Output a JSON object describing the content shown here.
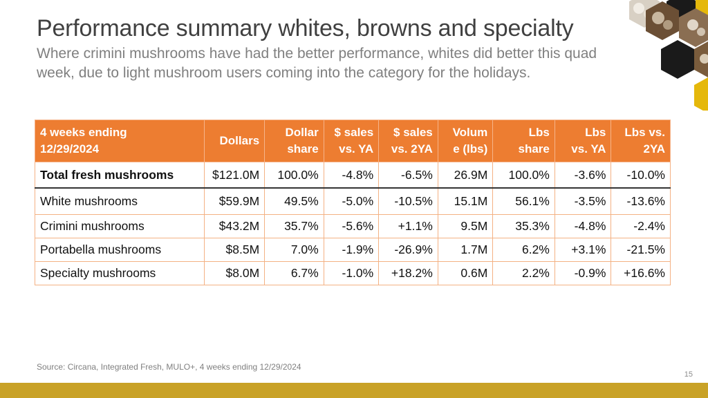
{
  "slide": {
    "title": "Performance summary whites, browns and specialty",
    "subtitle": "Where crimini mushrooms have had the better performance, whites did better this quad week, due to light mushroom users coming into the category for the holidays.",
    "source": "Source: Circana, Integrated Fresh, MULO+, 4 weeks ending 12/29/2024",
    "page_number": "15",
    "accent_color": "#ed7d31",
    "bar_color": "#c9a227"
  },
  "table": {
    "headers": [
      [
        "4 weeks ending",
        "12/29/2024"
      ],
      [
        "Dollars"
      ],
      [
        "Dollar",
        "share"
      ],
      [
        "$ sales",
        "vs. YA"
      ],
      [
        "$ sales",
        "vs. 2YA"
      ],
      [
        "Volum",
        "e (lbs)"
      ],
      [
        "Lbs",
        "share"
      ],
      [
        "Lbs",
        "vs. YA"
      ],
      [
        "Lbs vs.",
        "2YA"
      ]
    ],
    "rows": [
      [
        "Total fresh mushrooms",
        "$121.0M",
        "100.0%",
        "-4.8%",
        "-6.5%",
        "26.9M",
        "100.0%",
        "-3.6%",
        "-10.0%"
      ],
      [
        "White mushrooms",
        "$59.9M",
        "49.5%",
        "-5.0%",
        "-10.5%",
        "15.1M",
        "56.1%",
        "-3.5%",
        "-13.6%"
      ],
      [
        "Crimini mushrooms",
        "$43.2M",
        "35.7%",
        "-5.6%",
        "+1.1%",
        "9.5M",
        "35.3%",
        "-4.8%",
        "-2.4%"
      ],
      [
        "Portabella mushrooms",
        "$8.5M",
        "7.0%",
        "-1.9%",
        "-26.9%",
        "1.7M",
        "6.2%",
        "+3.1%",
        "-21.5%"
      ],
      [
        "Specialty mushrooms",
        "$8.0M",
        "6.7%",
        "-1.0%",
        "+18.2%",
        "0.6M",
        "2.2%",
        "-0.9%",
        "+16.6%"
      ]
    ]
  }
}
